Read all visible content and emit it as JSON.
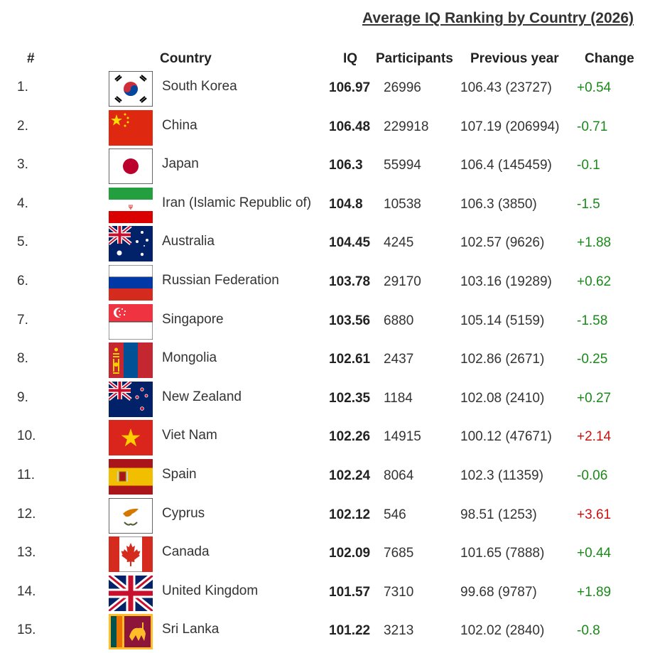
{
  "title": "Average IQ Ranking by Country (2026)",
  "headers": {
    "rank": "#",
    "country": "Country",
    "iq": "IQ",
    "participants": "Participants",
    "previous": "Previous year",
    "change": "Change"
  },
  "colors": {
    "positive": "#1a8a1a",
    "negative": "#cc1111"
  },
  "rows": [
    {
      "rank": "1.",
      "country": "South Korea",
      "flag": "south-korea",
      "iq": "106.97",
      "participants": "26996",
      "previous": "106.43 (23727)",
      "change": "+0.54",
      "change_color": "#1a8a1a"
    },
    {
      "rank": "2.",
      "country": "China",
      "flag": "china",
      "iq": "106.48",
      "participants": "229918",
      "previous": "107.19 (206994)",
      "change": "-0.71",
      "change_color": "#1a8a1a"
    },
    {
      "rank": "3.",
      "country": "Japan",
      "flag": "japan",
      "iq": "106.3",
      "participants": "55994",
      "previous": "106.4 (145459)",
      "change": "-0.1",
      "change_color": "#1a8a1a"
    },
    {
      "rank": "4.",
      "country": "Iran (Islamic Republic of)",
      "flag": "iran",
      "iq": "104.8",
      "participants": "10538",
      "previous": "106.3 (3850)",
      "change": "-1.5",
      "change_color": "#1a8a1a"
    },
    {
      "rank": "5.",
      "country": "Australia",
      "flag": "australia",
      "iq": "104.45",
      "participants": "4245",
      "previous": "102.57 (9626)",
      "change": "+1.88",
      "change_color": "#1a8a1a"
    },
    {
      "rank": "6.",
      "country": "Russian Federation",
      "flag": "russia",
      "iq": "103.78",
      "participants": "29170",
      "previous": "103.16 (19289)",
      "change": "+0.62",
      "change_color": "#1a8a1a"
    },
    {
      "rank": "7.",
      "country": "Singapore",
      "flag": "singapore",
      "iq": "103.56",
      "participants": "6880",
      "previous": "105.14 (5159)",
      "change": "-1.58",
      "change_color": "#1a8a1a"
    },
    {
      "rank": "8.",
      "country": "Mongolia",
      "flag": "mongolia",
      "iq": "102.61",
      "participants": "2437",
      "previous": "102.86 (2671)",
      "change": "-0.25",
      "change_color": "#1a8a1a"
    },
    {
      "rank": "9.",
      "country": "New Zealand",
      "flag": "new-zealand",
      "iq": "102.35",
      "participants": "1184",
      "previous": "102.08 (2410)",
      "change": "+0.27",
      "change_color": "#1a8a1a"
    },
    {
      "rank": "10.",
      "country": "Viet Nam",
      "flag": "vietnam",
      "iq": "102.26",
      "participants": "14915",
      "previous": "100.12 (47671)",
      "change": "+2.14",
      "change_color": "#cc1111"
    },
    {
      "rank": "11.",
      "country": "Spain",
      "flag": "spain",
      "iq": "102.24",
      "participants": "8064",
      "previous": "102.3 (11359)",
      "change": "-0.06",
      "change_color": "#1a8a1a"
    },
    {
      "rank": "12.",
      "country": "Cyprus",
      "flag": "cyprus",
      "iq": "102.12",
      "participants": "546",
      "previous": "98.51 (1253)",
      "change": "+3.61",
      "change_color": "#cc1111"
    },
    {
      "rank": "13.",
      "country": "Canada",
      "flag": "canada",
      "iq": "102.09",
      "participants": "7685",
      "previous": "101.65 (7888)",
      "change": "+0.44",
      "change_color": "#1a8a1a"
    },
    {
      "rank": "14.",
      "country": "United Kingdom",
      "flag": "united-kingdom",
      "iq": "101.57",
      "participants": "7310",
      "previous": "99.68 (9787)",
      "change": "+1.89",
      "change_color": "#1a8a1a"
    },
    {
      "rank": "15.",
      "country": "Sri Lanka",
      "flag": "sri-lanka",
      "iq": "101.22",
      "participants": "3213",
      "previous": "102.02 (2840)",
      "change": "-0.8",
      "change_color": "#1a8a1a"
    }
  ]
}
